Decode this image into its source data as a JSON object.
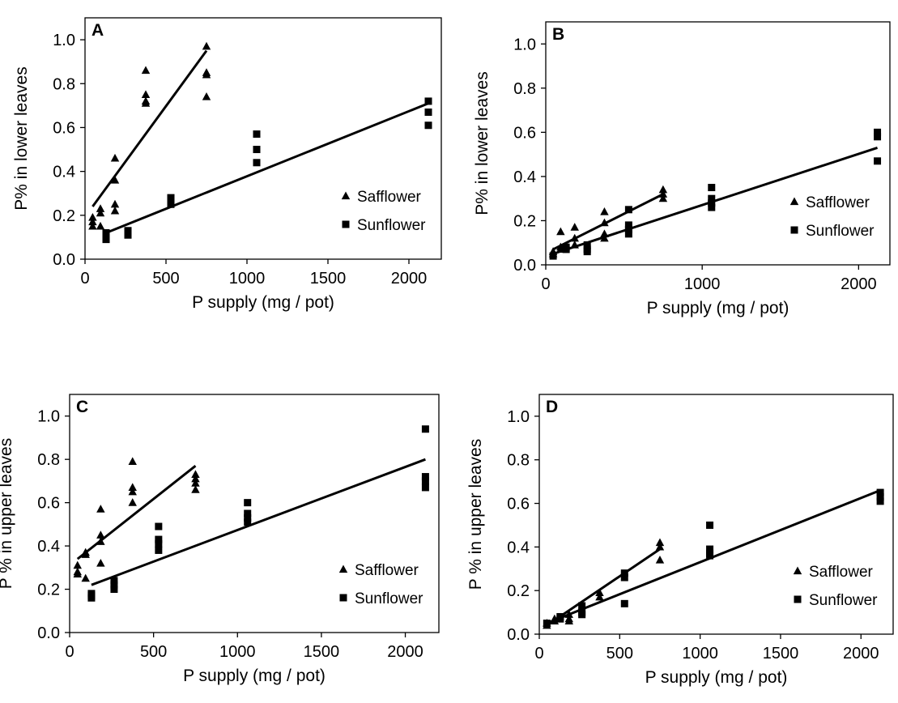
{
  "chart_data": [
    {
      "type": "scatter",
      "panel_label": "A",
      "xlabel": "P supply (mg / pot)",
      "ylabel": "P% in lower leaves",
      "xlim": [
        0,
        2200
      ],
      "ylim": [
        0,
        1.1
      ],
      "xticks": [
        0,
        500,
        1000,
        1500,
        2000
      ],
      "yticks": [
        0.0,
        0.2,
        0.4,
        0.6,
        0.8,
        1.0
      ],
      "legend": "bottom-right",
      "series": [
        {
          "name": "Safflower",
          "marker": "triangle",
          "points": [
            [
              47,
              0.15
            ],
            [
              47,
              0.17
            ],
            [
              47,
              0.19
            ],
            [
              95,
              0.21
            ],
            [
              95,
              0.23
            ],
            [
              95,
              0.15
            ],
            [
              185,
              0.46
            ],
            [
              185,
              0.36
            ],
            [
              185,
              0.25
            ],
            [
              185,
              0.22
            ],
            [
              375,
              0.86
            ],
            [
              375,
              0.75
            ],
            [
              375,
              0.72
            ],
            [
              375,
              0.71
            ],
            [
              750,
              0.97
            ],
            [
              750,
              0.85
            ],
            [
              750,
              0.84
            ],
            [
              750,
              0.74
            ]
          ],
          "fit": [
            [
              47,
              0.24
            ],
            [
              750,
              0.95
            ]
          ]
        },
        {
          "name": "Sunflower",
          "marker": "square",
          "points": [
            [
              130,
              0.12
            ],
            [
              130,
              0.1
            ],
            [
              130,
              0.09
            ],
            [
              265,
              0.13
            ],
            [
              265,
              0.12
            ],
            [
              265,
              0.11
            ],
            [
              530,
              0.28
            ],
            [
              530,
              0.27
            ],
            [
              530,
              0.25
            ],
            [
              1060,
              0.57
            ],
            [
              1060,
              0.5
            ],
            [
              1060,
              0.44
            ],
            [
              2120,
              0.72
            ],
            [
              2120,
              0.67
            ],
            [
              2120,
              0.61
            ]
          ],
          "fit": [
            [
              130,
              0.12
            ],
            [
              2120,
              0.71
            ]
          ]
        }
      ]
    },
    {
      "type": "scatter",
      "panel_label": "B",
      "xlabel": "P supply (mg / pot)",
      "ylabel": "P% in lower leaves",
      "xlim": [
        0,
        2200
      ],
      "ylim": [
        0,
        1.1
      ],
      "xticks": [
        0,
        1000,
        2000
      ],
      "yticks": [
        0.0,
        0.2,
        0.4,
        0.6,
        0.8,
        1.0
      ],
      "legend": "bottom-right",
      "series": [
        {
          "name": "Safflower",
          "marker": "triangle",
          "points": [
            [
              47,
              0.05
            ],
            [
              47,
              0.06
            ],
            [
              95,
              0.15
            ],
            [
              95,
              0.08
            ],
            [
              95,
              0.07
            ],
            [
              185,
              0.17
            ],
            [
              185,
              0.12
            ],
            [
              185,
              0.09
            ],
            [
              375,
              0.24
            ],
            [
              375,
              0.19
            ],
            [
              375,
              0.14
            ],
            [
              375,
              0.12
            ],
            [
              750,
              0.34
            ],
            [
              750,
              0.32
            ],
            [
              750,
              0.3
            ]
          ],
          "fit": [
            [
              47,
              0.07
            ],
            [
              750,
              0.32
            ]
          ]
        },
        {
          "name": "Sunflower",
          "marker": "square",
          "points": [
            [
              47,
              0.04
            ],
            [
              130,
              0.08
            ],
            [
              130,
              0.07
            ],
            [
              265,
              0.09
            ],
            [
              265,
              0.07
            ],
            [
              265,
              0.06
            ],
            [
              530,
              0.25
            ],
            [
              530,
              0.18
            ],
            [
              530,
              0.16
            ],
            [
              530,
              0.14
            ],
            [
              1060,
              0.35
            ],
            [
              1060,
              0.3
            ],
            [
              1060,
              0.28
            ],
            [
              1060,
              0.26
            ],
            [
              2120,
              0.6
            ],
            [
              2120,
              0.58
            ],
            [
              2120,
              0.47
            ]
          ],
          "fit": [
            [
              47,
              0.05
            ],
            [
              2120,
              0.53
            ]
          ]
        }
      ]
    },
    {
      "type": "scatter",
      "panel_label": "C",
      "xlabel": "P supply (mg / pot)",
      "ylabel": "P % in upper leaves",
      "xlim": [
        0,
        2200
      ],
      "ylim": [
        0,
        1.1
      ],
      "xticks": [
        0,
        500,
        1000,
        1500,
        2000
      ],
      "yticks": [
        0.0,
        0.2,
        0.4,
        0.6,
        0.8,
        1.0
      ],
      "legend": "bottom-right",
      "series": [
        {
          "name": "Safflower",
          "marker": "triangle",
          "points": [
            [
              47,
              0.31
            ],
            [
              47,
              0.28
            ],
            [
              47,
              0.27
            ],
            [
              95,
              0.37
            ],
            [
              95,
              0.36
            ],
            [
              95,
              0.25
            ],
            [
              185,
              0.57
            ],
            [
              185,
              0.45
            ],
            [
              185,
              0.42
            ],
            [
              185,
              0.32
            ],
            [
              375,
              0.79
            ],
            [
              375,
              0.67
            ],
            [
              375,
              0.65
            ],
            [
              375,
              0.6
            ],
            [
              750,
              0.73
            ],
            [
              750,
              0.71
            ],
            [
              750,
              0.69
            ],
            [
              750,
              0.66
            ]
          ],
          "fit": [
            [
              47,
              0.34
            ],
            [
              750,
              0.77
            ]
          ]
        },
        {
          "name": "Sunflower",
          "marker": "square",
          "points": [
            [
              130,
              0.18
            ],
            [
              130,
              0.17
            ],
            [
              130,
              0.16
            ],
            [
              265,
              0.24
            ],
            [
              265,
              0.22
            ],
            [
              265,
              0.2
            ],
            [
              530,
              0.49
            ],
            [
              530,
              0.43
            ],
            [
              530,
              0.41
            ],
            [
              530,
              0.38
            ],
            [
              1060,
              0.6
            ],
            [
              1060,
              0.55
            ],
            [
              1060,
              0.53
            ],
            [
              1060,
              0.51
            ],
            [
              2120,
              0.94
            ],
            [
              2120,
              0.72
            ],
            [
              2120,
              0.7
            ],
            [
              2120,
              0.67
            ]
          ],
          "fit": [
            [
              130,
              0.22
            ],
            [
              2120,
              0.8
            ]
          ]
        }
      ]
    },
    {
      "type": "scatter",
      "panel_label": "D",
      "xlabel": "P supply (mg / pot)",
      "ylabel": "P % in upper leaves",
      "xlim": [
        0,
        2200
      ],
      "ylim": [
        0,
        1.1
      ],
      "xticks": [
        0,
        500,
        1000,
        1500,
        2000
      ],
      "yticks": [
        0.0,
        0.2,
        0.4,
        0.6,
        0.8,
        1.0
      ],
      "legend": "bottom-right",
      "series": [
        {
          "name": "Safflower",
          "marker": "triangle",
          "points": [
            [
              47,
              0.05
            ],
            [
              47,
              0.04
            ],
            [
              95,
              0.07
            ],
            [
              95,
              0.06
            ],
            [
              185,
              0.09
            ],
            [
              185,
              0.07
            ],
            [
              185,
              0.06
            ],
            [
              375,
              0.19
            ],
            [
              375,
              0.17
            ],
            [
              750,
              0.42
            ],
            [
              750,
              0.4
            ],
            [
              750,
              0.34
            ]
          ],
          "fit": [
            [
              47,
              0.04
            ],
            [
              750,
              0.39
            ]
          ]
        },
        {
          "name": "Sunflower",
          "marker": "square",
          "points": [
            [
              47,
              0.05
            ],
            [
              130,
              0.08
            ],
            [
              130,
              0.07
            ],
            [
              265,
              0.13
            ],
            [
              265,
              0.1
            ],
            [
              265,
              0.09
            ],
            [
              530,
              0.28
            ],
            [
              530,
              0.26
            ],
            [
              530,
              0.14
            ],
            [
              1060,
              0.5
            ],
            [
              1060,
              0.39
            ],
            [
              1060,
              0.37
            ],
            [
              1060,
              0.36
            ],
            [
              2120,
              0.65
            ],
            [
              2120,
              0.63
            ],
            [
              2120,
              0.61
            ]
          ],
          "fit": [
            [
              47,
              0.05
            ],
            [
              2120,
              0.66
            ]
          ]
        }
      ]
    }
  ]
}
